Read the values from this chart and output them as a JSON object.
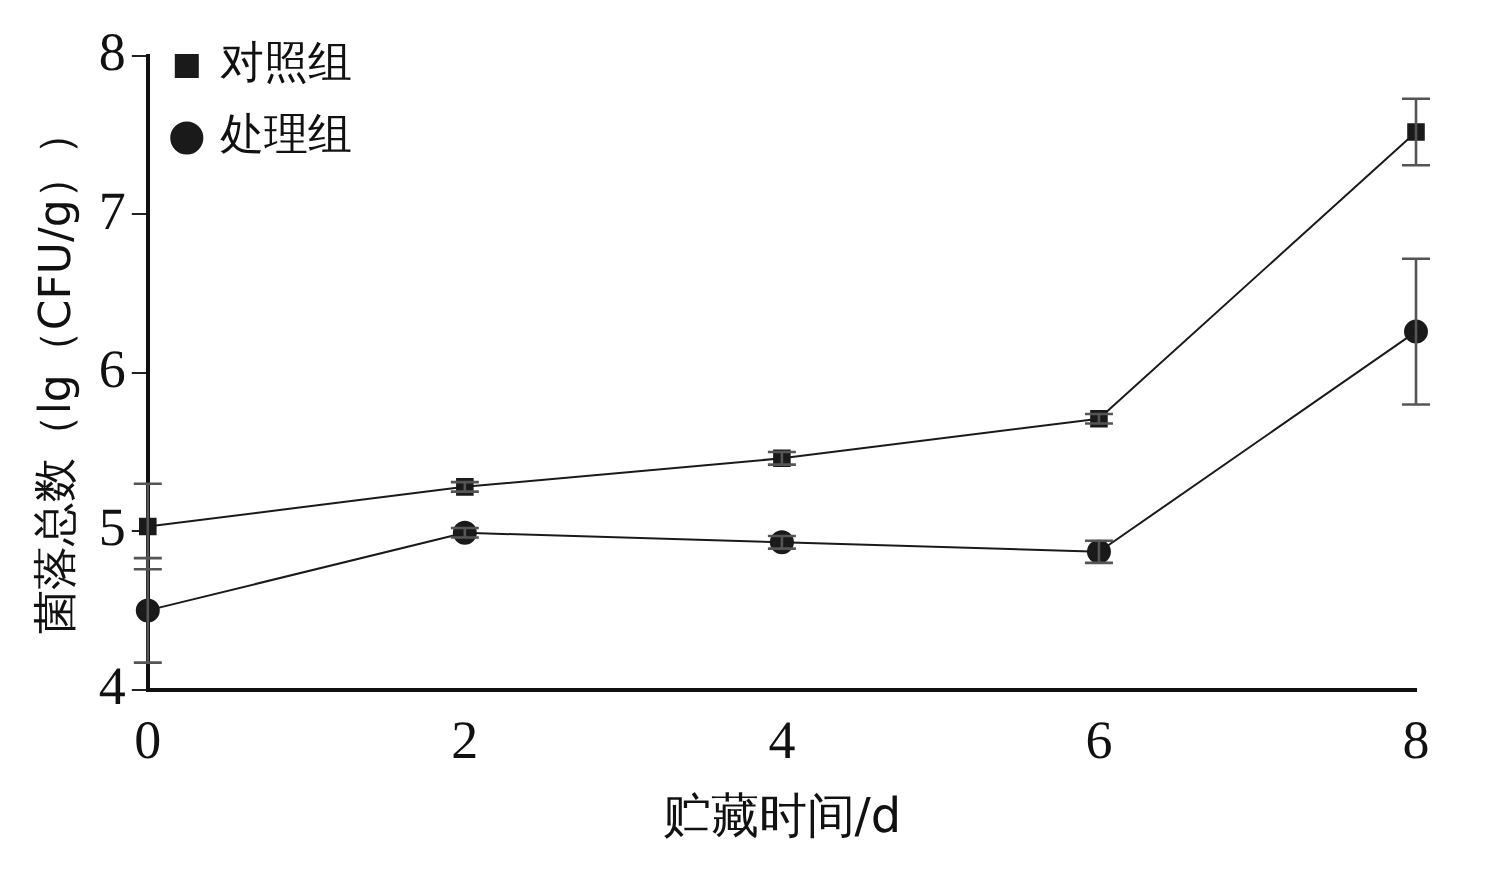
{
  "chart_data": {
    "type": "line",
    "xlabel": "贮藏时间/d",
    "ylabel": "菌落总数（lg（CFU/g））",
    "x": [
      0,
      2,
      4,
      6,
      8
    ],
    "xlim": [
      0,
      8
    ],
    "xticks": [
      0,
      2,
      4,
      6,
      8
    ],
    "ylim": [
      4,
      8
    ],
    "yticks": [
      4,
      5,
      6,
      7,
      8
    ],
    "grid": false,
    "legend": "top left",
    "line_style": "solid",
    "series": [
      {
        "name": "对照组",
        "color": "#1a1a1a",
        "marker": "square",
        "values": [
          5.03,
          5.28,
          5.46,
          5.71,
          7.52
        ],
        "errors": [
          0.27,
          0.03,
          0.04,
          0.03,
          0.21
        ]
      },
      {
        "name": "处理组",
        "color": "#1a1a1a",
        "marker": "circle",
        "values": [
          4.5,
          4.99,
          4.93,
          4.87,
          6.26
        ],
        "errors": [
          0.33,
          0.03,
          0.04,
          0.07,
          0.46
        ]
      }
    ]
  }
}
